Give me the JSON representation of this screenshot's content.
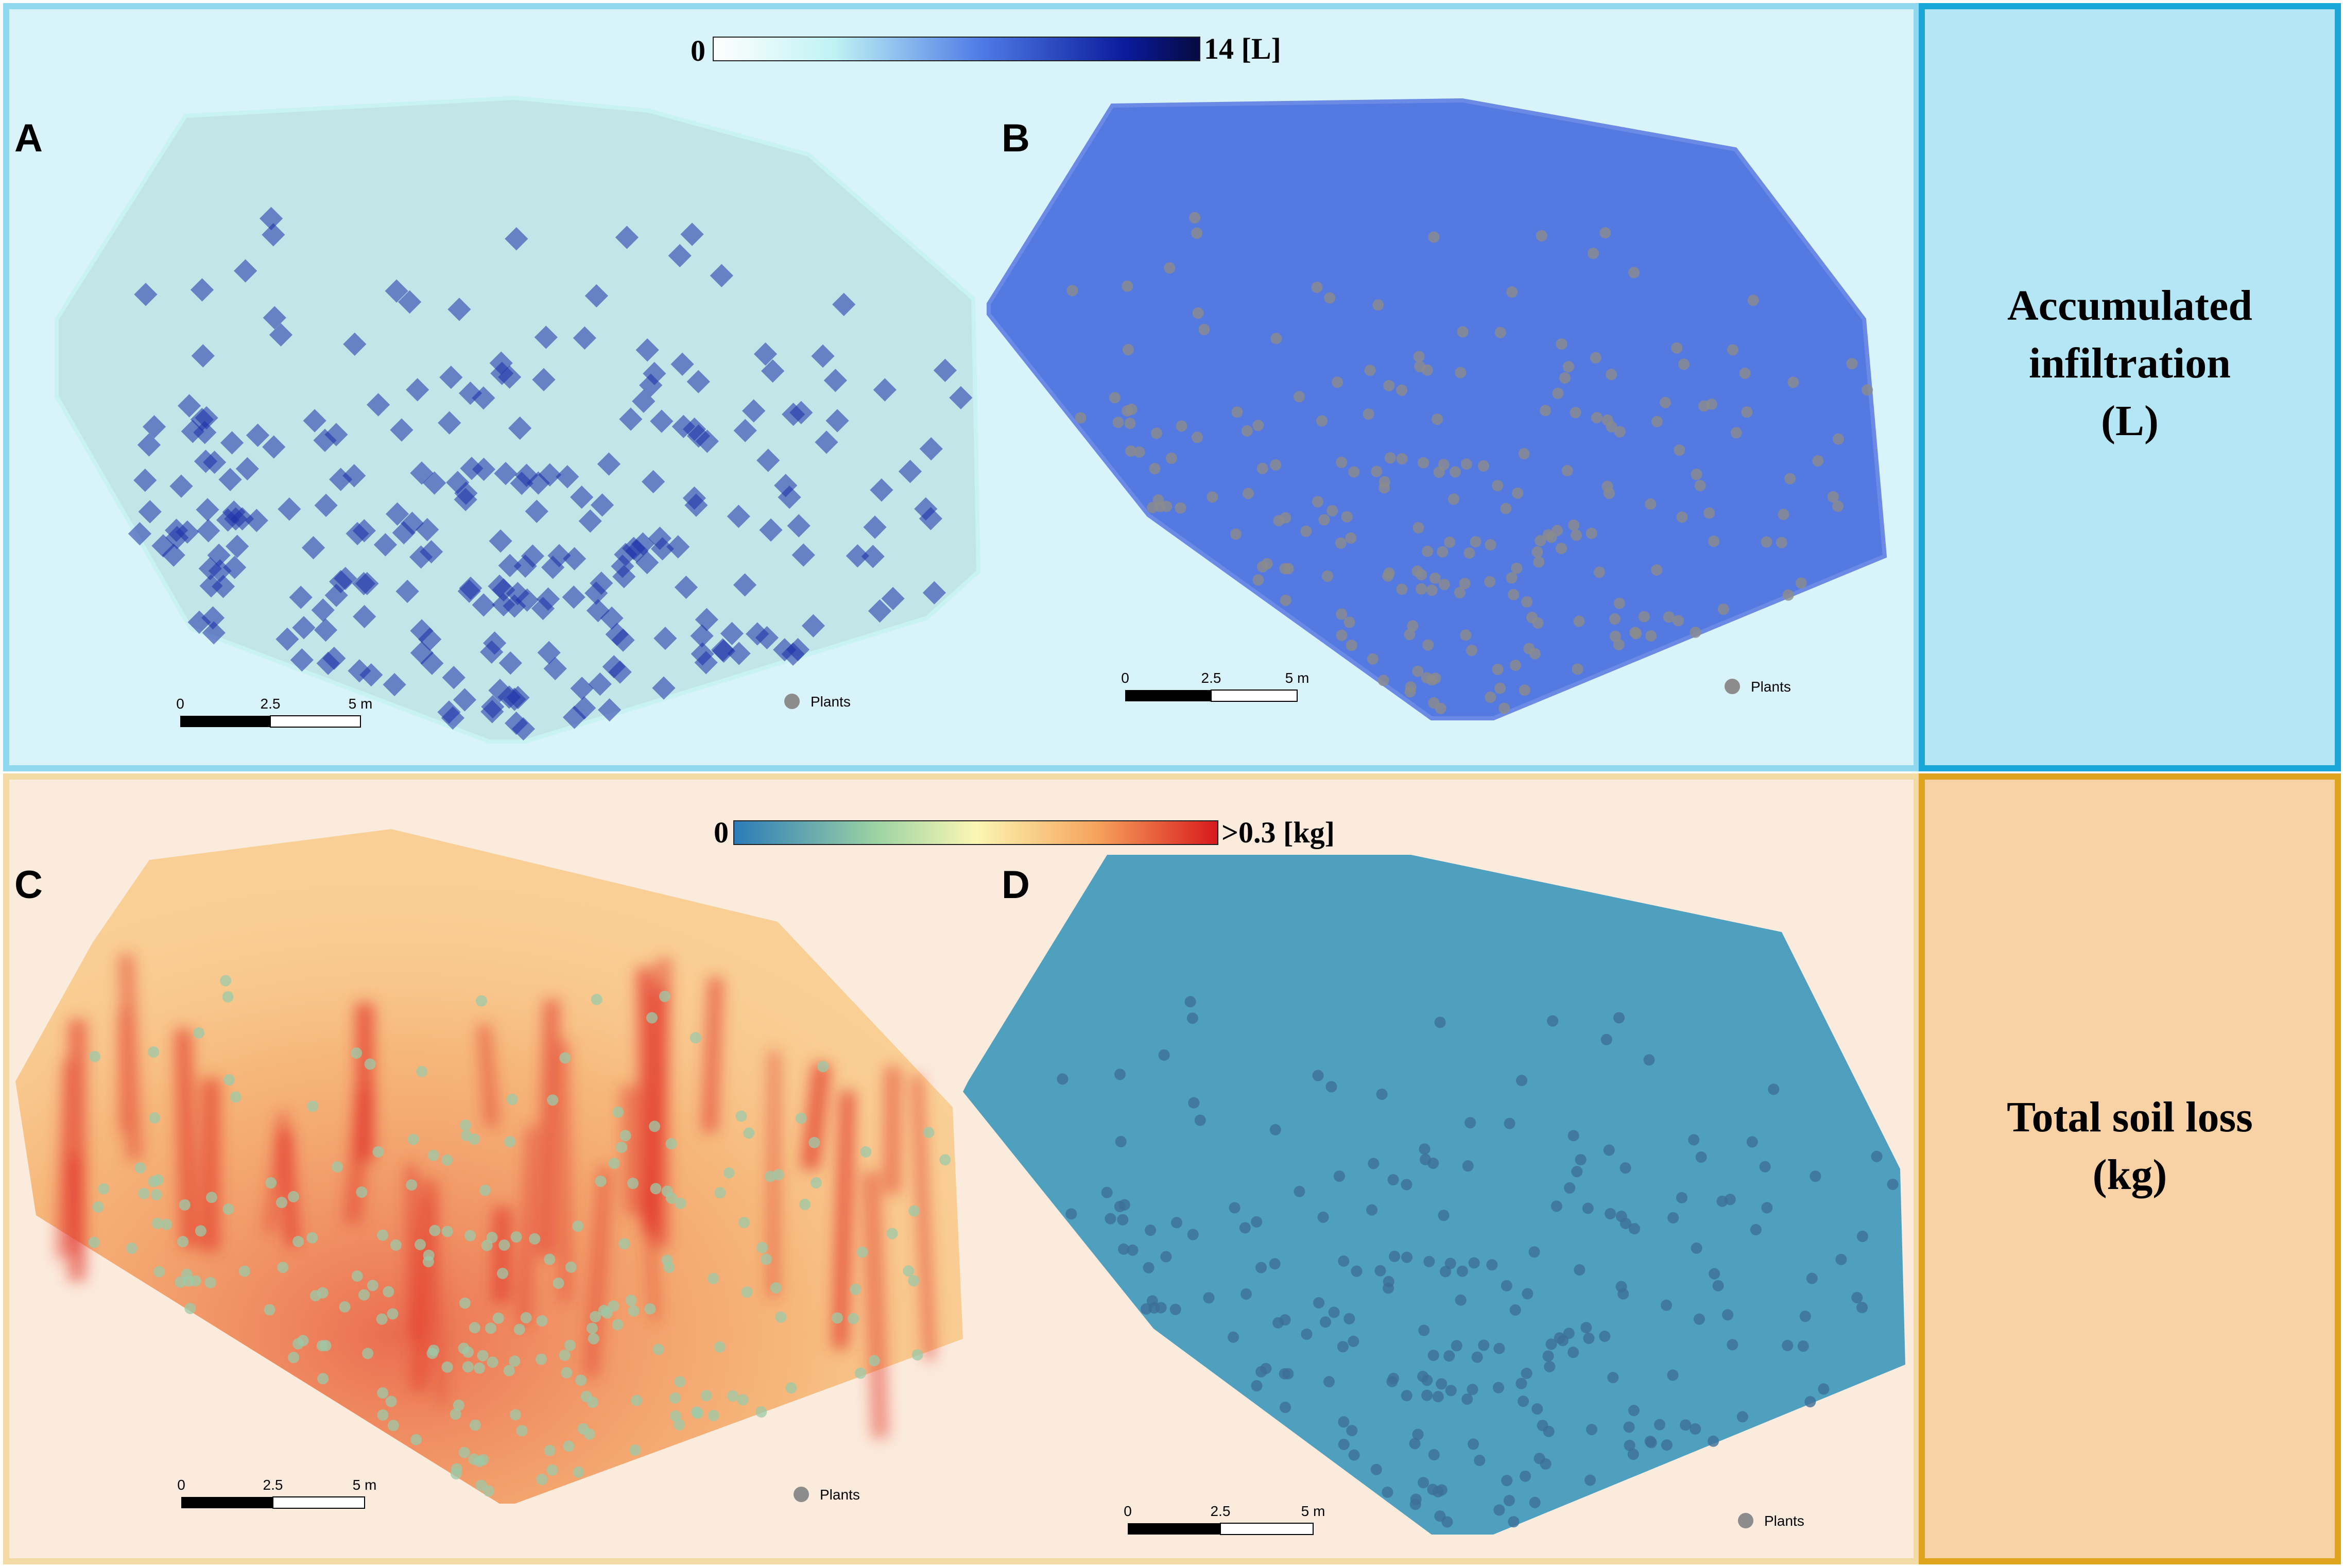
{
  "panels": {
    "A": {
      "letter": "A"
    },
    "B": {
      "letter": "B"
    },
    "C": {
      "letter": "C"
    },
    "D": {
      "letter": "D"
    }
  },
  "row_labels": {
    "top": "Accumulated\ninfiltration\n(L)",
    "bottom": "Total soil loss\n(kg)"
  },
  "colorbars": {
    "top": {
      "min_label": "0",
      "max_label": "14 [L]",
      "colors": [
        "#ffffff",
        "#bff2f4",
        "#4f7be6",
        "#0a1a9a",
        "#050a40"
      ]
    },
    "bottom": {
      "min_label": "0",
      "max_label": ">0.3 [kg]",
      "colors": [
        "#2b7bb9",
        "#9ed4a4",
        "#fbf7b3",
        "#f6a35c",
        "#d7191c"
      ]
    }
  },
  "scale_bar": {
    "ticks": [
      "0",
      "2.5",
      "5 m"
    ]
  },
  "legend": {
    "plants_label": "Plants",
    "plants_color": "#8c8c8c"
  },
  "map_colors": {
    "A_fill": "#c2e6e8",
    "A_plants": "#1c2fa8",
    "B_fill": "#5479e0",
    "C_fill": "#f9cf95",
    "C_hot": "#e2382c",
    "D_fill": "#4f9fbf",
    "D_plants": "#3c6f9a"
  }
}
